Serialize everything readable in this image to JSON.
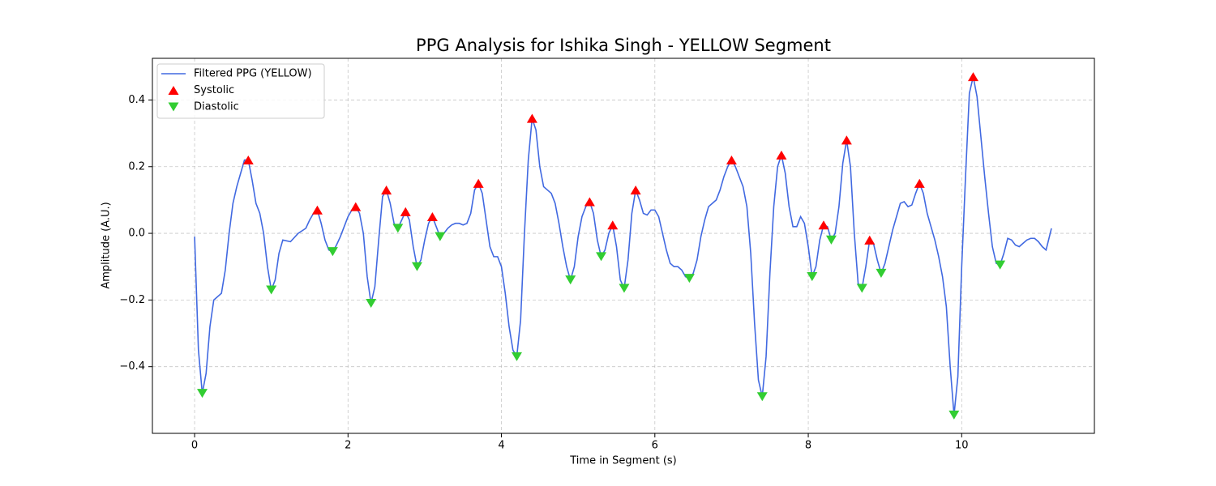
{
  "chart_data": {
    "type": "line",
    "title": "PPG Analysis for Ishika Singh - YELLOW Segment",
    "xlabel": "Time in Segment (s)",
    "ylabel": "Amplitude (A.U.)",
    "xlim": [
      -0.55,
      11.73
    ],
    "ylim": [
      -0.6,
      0.525
    ],
    "xticks": [
      0,
      2,
      4,
      6,
      8,
      10
    ],
    "yticks": [
      {
        "value": -0.4,
        "label": "−0.4"
      },
      {
        "value": -0.2,
        "label": "−0.2"
      },
      {
        "value": 0,
        "label": "0.0"
      },
      0.2,
      0.4
    ],
    "grid": true,
    "legend": "upper left",
    "series": [
      {
        "name": "Filtered PPG (YELLOW)",
        "color": "#4169e1",
        "marker": "none",
        "x": [
          0,
          0.05,
          0.1,
          0.15,
          0.2,
          0.25,
          0.35,
          0.4,
          0.45,
          0.5,
          0.55,
          0.6,
          0.65,
          0.7,
          0.75,
          0.8,
          0.85,
          0.9,
          0.95,
          1.0,
          1.05,
          1.1,
          1.15,
          1.25,
          1.35,
          1.45,
          1.5,
          1.55,
          1.6,
          1.65,
          1.7,
          1.75,
          1.8,
          1.85,
          1.9,
          1.95,
          2.0,
          2.05,
          2.1,
          2.15,
          2.2,
          2.25,
          2.3,
          2.35,
          2.4,
          2.45,
          2.5,
          2.55,
          2.6,
          2.65,
          2.7,
          2.75,
          2.8,
          2.85,
          2.9,
          2.95,
          3.0,
          3.05,
          3.1,
          3.15,
          3.2,
          3.25,
          3.3,
          3.35,
          3.4,
          3.45,
          3.5,
          3.55,
          3.6,
          3.65,
          3.7,
          3.75,
          3.8,
          3.85,
          3.9,
          3.95,
          4.0,
          4.05,
          4.1,
          4.15,
          4.2,
          4.25,
          4.3,
          4.35,
          4.4,
          4.45,
          4.5,
          4.55,
          4.6,
          4.65,
          4.7,
          4.75,
          4.8,
          4.85,
          4.9,
          4.95,
          5.0,
          5.05,
          5.1,
          5.15,
          5.2,
          5.25,
          5.3,
          5.35,
          5.4,
          5.45,
          5.5,
          5.55,
          5.6,
          5.65,
          5.7,
          5.75,
          5.8,
          5.85,
          5.9,
          5.95,
          6.0,
          6.05,
          6.1,
          6.15,
          6.2,
          6.25,
          6.3,
          6.35,
          6.4,
          6.45,
          6.5,
          6.55,
          6.6,
          6.65,
          6.7,
          6.75,
          6.8,
          6.85,
          6.9,
          6.95,
          7.0,
          7.05,
          7.1,
          7.15,
          7.2,
          7.25,
          7.3,
          7.35,
          7.4,
          7.45,
          7.5,
          7.55,
          7.6,
          7.65,
          7.7,
          7.75,
          7.8,
          7.85,
          7.9,
          7.95,
          8.0,
          8.05,
          8.1,
          8.15,
          8.2,
          8.25,
          8.3,
          8.35,
          8.4,
          8.45,
          8.5,
          8.55,
          8.6,
          8.65,
          8.7,
          8.75,
          8.8,
          8.85,
          8.9,
          8.95,
          9.0,
          9.05,
          9.1,
          9.15,
          9.2,
          9.25,
          9.3,
          9.35,
          9.4,
          9.45,
          9.5,
          9.55,
          9.6,
          9.65,
          9.7,
          9.75,
          9.8,
          9.85,
          9.9,
          9.95,
          10.0,
          10.05,
          10.1,
          10.15,
          10.2,
          10.25,
          10.3,
          10.35,
          10.4,
          10.45,
          10.5,
          10.55,
          10.6,
          10.65,
          10.7,
          10.75,
          10.8,
          10.85,
          10.9,
          10.95,
          11.0,
          11.05,
          11.1,
          11.17
        ],
        "values": [
          -0.01,
          -0.35,
          -0.48,
          -0.42,
          -0.28,
          -0.2,
          -0.18,
          -0.11,
          0.0,
          0.09,
          0.14,
          0.18,
          0.22,
          0.22,
          0.16,
          0.09,
          0.06,
          0.0,
          -0.1,
          -0.17,
          -0.14,
          -0.06,
          -0.02,
          -0.025,
          0.0,
          0.015,
          0.04,
          0.06,
          0.07,
          0.03,
          -0.02,
          -0.05,
          -0.055,
          -0.035,
          -0.01,
          0.02,
          0.05,
          0.07,
          0.08,
          0.06,
          0.0,
          -0.13,
          -0.21,
          -0.16,
          -0.02,
          0.11,
          0.13,
          0.09,
          0.03,
          0.015,
          0.04,
          0.065,
          0.04,
          -0.04,
          -0.1,
          -0.08,
          -0.02,
          0.03,
          0.05,
          0.02,
          -0.01,
          0.0,
          0.015,
          0.025,
          0.03,
          0.03,
          0.025,
          0.03,
          0.06,
          0.13,
          0.15,
          0.12,
          0.04,
          -0.04,
          -0.07,
          -0.07,
          -0.1,
          -0.18,
          -0.28,
          -0.35,
          -0.37,
          -0.26,
          0.0,
          0.22,
          0.345,
          0.31,
          0.2,
          0.14,
          0.13,
          0.12,
          0.09,
          0.03,
          -0.04,
          -0.1,
          -0.14,
          -0.1,
          -0.01,
          0.05,
          0.08,
          0.095,
          0.06,
          -0.02,
          -0.07,
          -0.05,
          0.0,
          0.025,
          -0.04,
          -0.14,
          -0.165,
          -0.08,
          0.06,
          0.13,
          0.1,
          0.06,
          0.055,
          0.07,
          0.07,
          0.05,
          0.0,
          -0.05,
          -0.09,
          -0.1,
          -0.1,
          -0.11,
          -0.13,
          -0.135,
          -0.12,
          -0.08,
          -0.01,
          0.04,
          0.08,
          0.09,
          0.1,
          0.13,
          0.17,
          0.2,
          0.22,
          0.2,
          0.17,
          0.14,
          0.08,
          -0.06,
          -0.27,
          -0.44,
          -0.49,
          -0.37,
          -0.12,
          0.08,
          0.2,
          0.235,
          0.18,
          0.08,
          0.02,
          0.02,
          0.05,
          0.03,
          -0.04,
          -0.13,
          -0.1,
          -0.02,
          0.025,
          0.02,
          -0.02,
          0.0,
          0.08,
          0.21,
          0.28,
          0.2,
          0.0,
          -0.15,
          -0.165,
          -0.1,
          -0.02,
          -0.03,
          -0.08,
          -0.12,
          -0.09,
          -0.04,
          0.01,
          0.05,
          0.09,
          0.095,
          0.08,
          0.085,
          0.12,
          0.15,
          0.12,
          0.06,
          0.02,
          -0.02,
          -0.07,
          -0.13,
          -0.22,
          -0.4,
          -0.545,
          -0.43,
          -0.1,
          0.17,
          0.42,
          0.47,
          0.41,
          0.29,
          0.17,
          0.06,
          -0.04,
          -0.09,
          -0.095,
          -0.06,
          -0.015,
          -0.02,
          -0.035,
          -0.04,
          -0.03,
          -0.02,
          -0.015,
          -0.015,
          -0.025,
          -0.04,
          -0.05,
          0.015
        ]
      },
      {
        "name": "Systolic",
        "color": "#ff0000",
        "marker": "^",
        "x": [
          0.7,
          1.6,
          2.1,
          2.5,
          2.75,
          3.1,
          3.7,
          4.4,
          5.15,
          5.45,
          5.75,
          7.0,
          7.65,
          8.2,
          8.5,
          8.8,
          9.45,
          10.15
        ],
        "values": [
          0.22,
          0.07,
          0.08,
          0.13,
          0.065,
          0.05,
          0.15,
          0.345,
          0.095,
          0.025,
          0.13,
          0.22,
          0.235,
          0.025,
          0.28,
          -0.02,
          0.15,
          0.47
        ]
      },
      {
        "name": "Diastolic",
        "color": "#32cd32",
        "marker": "v",
        "x": [
          0.1,
          1.0,
          1.8,
          2.3,
          2.65,
          2.9,
          3.2,
          4.2,
          4.9,
          5.3,
          5.6,
          6.45,
          7.4,
          8.05,
          8.3,
          8.7,
          8.95,
          9.9,
          10.5
        ],
        "values": [
          -0.48,
          -0.17,
          -0.055,
          -0.21,
          0.015,
          -0.1,
          -0.01,
          -0.37,
          -0.14,
          -0.07,
          -0.165,
          -0.135,
          -0.49,
          -0.13,
          -0.02,
          -0.165,
          -0.12,
          -0.545,
          -0.095
        ]
      }
    ]
  }
}
